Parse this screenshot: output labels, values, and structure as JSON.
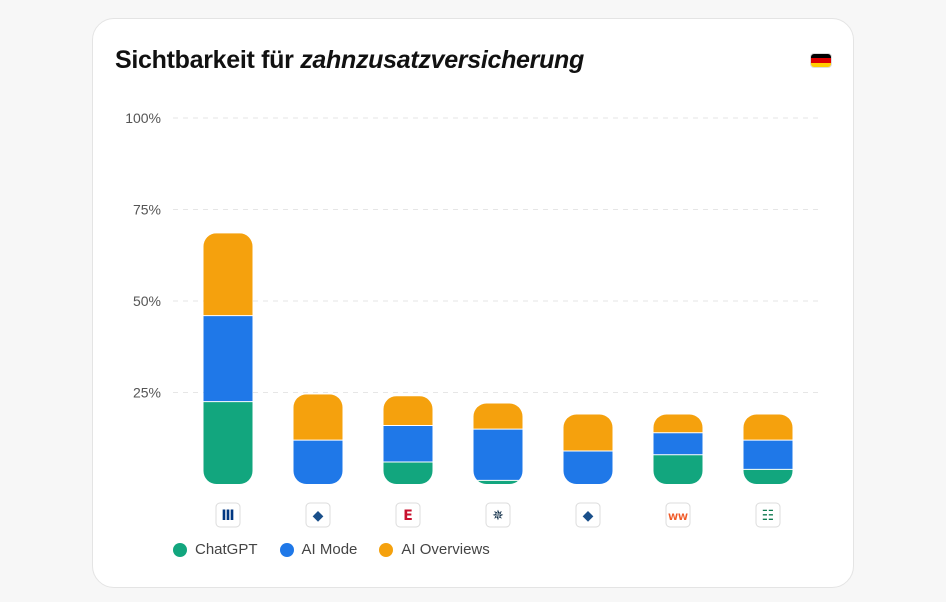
{
  "card": {
    "title_prefix": "Sichtbarkeit für",
    "title_keyword": "zahnzusatzversicherung",
    "flag": {
      "icon": "germany-flag-icon",
      "colors": [
        "#000000",
        "#dd0000",
        "#ffce00"
      ]
    }
  },
  "chart_data": {
    "type": "bar",
    "stacked": true,
    "categories": [
      "allianz",
      "provider-2",
      "ergo",
      "provider-4",
      "provider-5",
      "wefox",
      "provider-7"
    ],
    "category_icons": [
      {
        "name": "allianz-logo-icon",
        "color": "#003781",
        "glyph": "Ⅲ"
      },
      {
        "name": "brand-logo-icon",
        "color": "#1a4f8a",
        "glyph": "◆"
      },
      {
        "name": "ergo-logo-icon",
        "color": "#c8102e",
        "glyph": "E"
      },
      {
        "name": "brand-star-logo-icon",
        "color": "#0d2b45",
        "glyph": "✵"
      },
      {
        "name": "brand-logo-icon",
        "color": "#1a4f8a",
        "glyph": "◆"
      },
      {
        "name": "brand-ww-logo-icon",
        "color": "#f05a28",
        "glyph": "WW"
      },
      {
        "name": "brand-green-logo-icon",
        "color": "#0e7a4f",
        "glyph": "☷"
      }
    ],
    "series": [
      {
        "name": "ChatGPT",
        "color": "#12a67e",
        "values": [
          22.5,
          0,
          6,
          1,
          0,
          8,
          4
        ]
      },
      {
        "name": "AI Mode",
        "color": "#1f78e8",
        "values": [
          23.5,
          12,
          10,
          14,
          9,
          6,
          8
        ]
      },
      {
        "name": "AI Overviews",
        "color": "#f5a10d",
        "values": [
          22.5,
          12.5,
          8,
          7,
          10,
          5,
          7
        ]
      }
    ],
    "y_ticks": [
      "100%",
      "75%",
      "50%",
      "25%"
    ],
    "y_tick_values": [
      100,
      75,
      50,
      25
    ],
    "ylim": [
      0,
      100
    ],
    "grid": true,
    "legend_position": "bottom-left"
  }
}
